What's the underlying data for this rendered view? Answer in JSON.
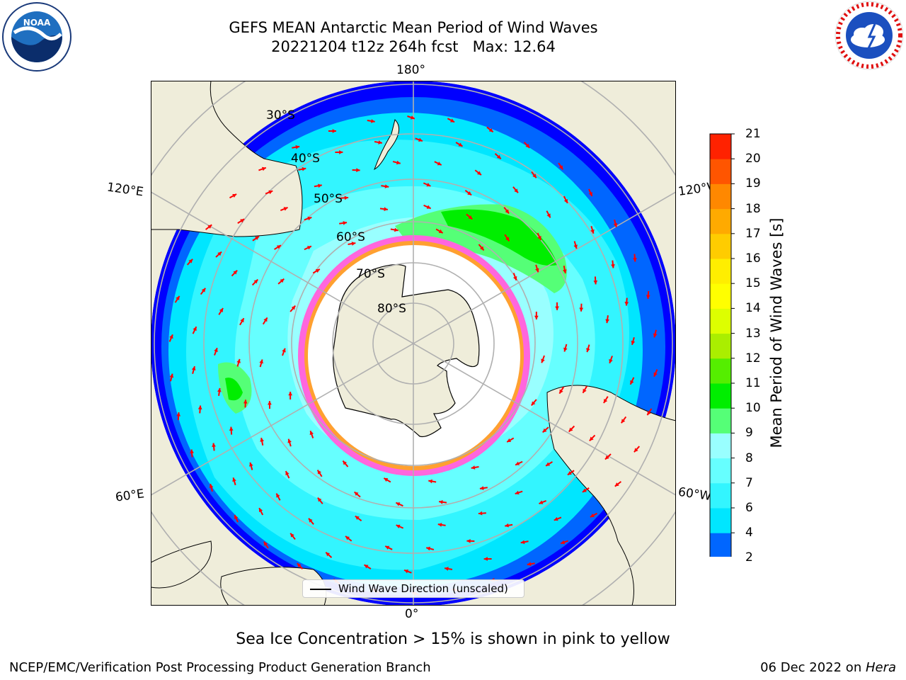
{
  "header": {
    "title_line1": "GEFS MEAN Antarctic Mean Period of Wind Waves",
    "title_line2": "20221204 t12z 264h fcst   Max: 12.64"
  },
  "logos": {
    "left_name": "NOAA",
    "right_name": "NATIONAL WEATHER SERVICE"
  },
  "map": {
    "projection": "south-polar-stereographic",
    "lon_labels": {
      "top": "180°",
      "bottom": "0°",
      "left_upper": "120°E",
      "left_lower": "60°E",
      "right_upper": "120°W",
      "right_lower": "60°W"
    },
    "lat_labels": [
      "30°S",
      "40°S",
      "50°S",
      "60°S",
      "70°S",
      "80°S"
    ],
    "legend_label": "Wind Wave Direction (unscaled)",
    "colors": {
      "land": "#efedda",
      "ice_white": "#ffffff",
      "ice_pink": "#ff66dd",
      "ice_orange": "#ffa030",
      "arrow": "#ff0000",
      "grid": "#b0b0b0"
    }
  },
  "colorbar": {
    "label": "Mean Period of Wind Waves [s]",
    "ticks": [
      "2",
      "4",
      "6",
      "7",
      "8",
      "9",
      "10",
      "11",
      "12",
      "13",
      "14",
      "15",
      "16",
      "17",
      "18",
      "19",
      "20",
      "21"
    ],
    "colors": [
      "#0066ff",
      "#00e6ff",
      "#33f5ff",
      "#66ffff",
      "#99ffff",
      "#55ff77",
      "#00ee00",
      "#55ee00",
      "#aaee00",
      "#ddff00",
      "#ffff00",
      "#ffee00",
      "#ffcc00",
      "#ffaa00",
      "#ff8800",
      "#ff5500",
      "#ff2200"
    ],
    "extend_color": "#0000ff"
  },
  "caption": "Sea Ice Concentration > 15% is shown in pink to yellow",
  "footer": {
    "left": "NCEP/EMC/Verification Post Processing Product Generation Branch",
    "right_prefix": "06 Dec 2022 on ",
    "right_italic": "Hera"
  }
}
